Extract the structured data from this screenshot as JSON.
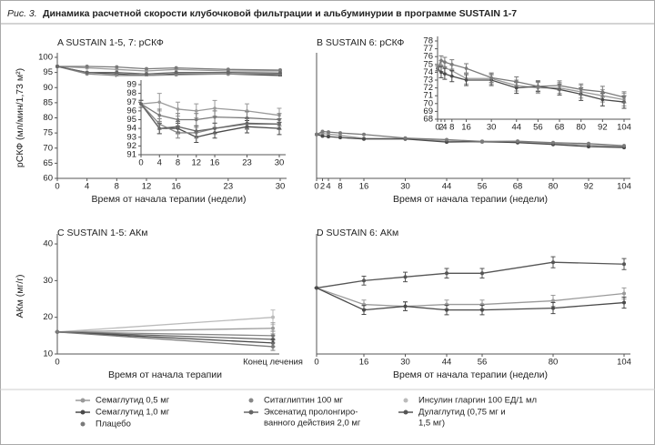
{
  "figure_label": "Рис. 3.",
  "figure_title": "Динамика расчетной скорости клубочковой фильтрации и альбуминурии в программе  SUSTAIN 1-7",
  "chart_data": [
    {
      "type": "line",
      "title": "A SUSTAIN 1-5, 7: рСКФ",
      "ylabel": "рСКФ (мл/мин/1,73 м²)",
      "xlabel": "Время от начала терапии (недели)",
      "x": [
        0,
        4,
        8,
        12,
        16,
        23,
        30
      ],
      "xlim": [
        0,
        30
      ],
      "xticks": [
        0,
        4,
        8,
        12,
        16,
        23,
        30
      ],
      "ylim": [
        60,
        100
      ],
      "yticks": [
        60,
        65,
        70,
        75,
        80,
        85,
        90,
        95,
        100
      ],
      "series": [
        {
          "color": "#9a9a9a",
          "values": [
            97,
            96.5,
            96,
            95.5,
            96,
            95.5,
            95.5
          ]
        },
        {
          "color": "#4a4a4a",
          "values": [
            97,
            95,
            94.5,
            94,
            94.5,
            94.5,
            94
          ]
        },
        {
          "color": "#7a7a7a",
          "values": [
            97,
            97,
            96.8,
            96.2,
            96.5,
            96,
            95.8
          ]
        },
        {
          "color": "#888888",
          "values": [
            97,
            94.5,
            94,
            94,
            94.2,
            94.5,
            94.5
          ]
        },
        {
          "color": "#666666",
          "values": [
            97,
            95,
            95,
            94.5,
            95,
            95,
            94.8
          ]
        }
      ]
    },
    {
      "type": "line",
      "x": [
        0,
        4,
        8,
        12,
        16,
        23,
        30
      ],
      "xlim": [
        0,
        30
      ],
      "xticks": [
        0,
        4,
        8,
        12,
        16,
        23,
        30
      ],
      "ylim": [
        91,
        99
      ],
      "yticks": [
        91,
        92,
        93,
        94,
        95,
        96,
        97,
        98,
        99
      ],
      "series": [
        {
          "color": "#9a9a9a",
          "values": [
            96.8,
            97,
            96.2,
            96,
            96.3,
            96,
            95.5
          ],
          "errors": [
            0.4,
            1,
            0.8,
            0.8,
            0.9,
            0.8,
            0.8
          ]
        },
        {
          "color": "#4a4a4a",
          "values": [
            96.8,
            94,
            94,
            93,
            93.5,
            94.2,
            94
          ],
          "errors": [
            0.4,
            0.6,
            0.6,
            0.6,
            0.6,
            0.7,
            0.7
          ]
        },
        {
          "color": "#7a7a7a",
          "values": [
            96.8,
            95.5,
            95,
            95,
            95.3,
            95.2,
            95
          ],
          "errors": [
            0.4,
            0.7,
            0.7,
            0.7,
            0.7,
            0.7,
            0.7
          ]
        },
        {
          "color": "#888888",
          "values": [
            96.8,
            94.5,
            93.5,
            93.5,
            94,
            94.5,
            94.5
          ],
          "errors": [
            0.4,
            0.6,
            0.6,
            0.6,
            0.6,
            0.6,
            0.6
          ]
        },
        {
          "color": "#666666",
          "values": [
            96.8,
            94,
            94.2,
            93.7,
            94,
            94.6,
            94.5
          ],
          "errors": [
            0.4,
            0.6,
            0.6,
            0.6,
            0.6,
            0.6,
            0.6
          ]
        }
      ]
    },
    {
      "type": "line",
      "title": "B SUSTAIN 6: рСКФ",
      "xlabel": "Время от начала терапии (недели)",
      "x": [
        0,
        2,
        4,
        8,
        16,
        30,
        44,
        56,
        68,
        80,
        92,
        104
      ],
      "xlim": [
        0,
        104
      ],
      "xticks": [
        0,
        2,
        4,
        8,
        16,
        30,
        44,
        56,
        68,
        80,
        92,
        104
      ],
      "ylim": [
        60,
        100
      ],
      "series": [
        {
          "color": "#9a9a9a",
          "values": [
            74.5,
            74.8,
            74.6,
            74.2,
            73.2,
            73.2,
            72.3,
            72,
            72,
            71.5,
            71,
            70.5
          ]
        },
        {
          "color": "#4a4a4a",
          "values": [
            74.5,
            74,
            73.8,
            73.5,
            73,
            73,
            72,
            72.2,
            71.8,
            71.2,
            70.5,
            70.2
          ]
        },
        {
          "color": "#7a7a7a",
          "values": [
            74.5,
            75.5,
            75.3,
            75,
            74.5,
            73.3,
            72.8,
            72.2,
            72.3,
            71.8,
            71.5,
            70.8
          ]
        }
      ]
    },
    {
      "type": "line",
      "x": [
        0,
        2,
        4,
        8,
        16,
        30,
        44,
        56,
        68,
        80,
        92,
        104
      ],
      "xlim": [
        0,
        104
      ],
      "xticks": [
        0,
        2,
        4,
        8,
        16,
        30,
        44,
        56,
        68,
        80,
        92,
        104
      ],
      "ylim": [
        68,
        78
      ],
      "yticks": [
        68,
        69,
        70,
        71,
        72,
        73,
        74,
        75,
        76,
        77,
        78
      ],
      "series": [
        {
          "color": "#9a9a9a",
          "values": [
            74.5,
            74.8,
            74.6,
            74.2,
            73.2,
            73.2,
            72.3,
            72,
            72,
            71.5,
            71,
            70.5
          ],
          "errors": [
            0.3,
            0.7,
            0.7,
            0.7,
            0.7,
            0.7,
            0.7,
            0.7,
            0.7,
            0.8,
            0.8,
            0.8
          ]
        },
        {
          "color": "#4a4a4a",
          "values": [
            74.5,
            74,
            73.8,
            73.5,
            73,
            73,
            72,
            72.2,
            71.8,
            71.2,
            70.5,
            70.2
          ],
          "errors": [
            0.3,
            0.7,
            0.7,
            0.7,
            0.7,
            0.7,
            0.7,
            0.7,
            0.7,
            0.8,
            0.8,
            0.8
          ]
        },
        {
          "color": "#7a7a7a",
          "values": [
            74.5,
            75.5,
            75.3,
            75,
            74.5,
            73.3,
            72.8,
            72.2,
            72.3,
            71.8,
            71.5,
            70.8
          ],
          "errors": [
            0.3,
            0.6,
            0.6,
            0.6,
            0.6,
            0.6,
            0.6,
            0.6,
            0.6,
            0.7,
            0.7,
            0.7
          ]
        }
      ]
    },
    {
      "type": "line",
      "title": "C SUSTAIN 1-5: АКм",
      "ylabel": "АКм (мг/г)",
      "xlabel": "Время от начала терапии",
      "categories": [
        "0",
        "Конец лечения"
      ],
      "ylim": [
        10,
        41.5
      ],
      "yticks": [
        10,
        20,
        30,
        40
      ],
      "series": [
        {
          "color": "#bbbbbb",
          "values": [
            16,
            20
          ],
          "errors": [
            0,
            2
          ]
        },
        {
          "color": "#9a9a9a",
          "values": [
            16,
            17
          ],
          "errors": [
            0,
            1.5
          ]
        },
        {
          "color": "#888888",
          "values": [
            16,
            15
          ],
          "errors": [
            0,
            1.2
          ]
        },
        {
          "color": "#666666",
          "values": [
            16,
            14
          ],
          "errors": [
            0,
            1
          ]
        },
        {
          "color": "#4a4a4a",
          "values": [
            16,
            13
          ],
          "errors": [
            0,
            1
          ]
        },
        {
          "color": "#7a7a7a",
          "values": [
            16,
            12
          ],
          "errors": [
            0,
            1
          ]
        }
      ]
    },
    {
      "type": "line",
      "title": "D SUSTAIN 6: АКм",
      "xlabel": "Время от начала терапии (недели)",
      "x": [
        0,
        16,
        30,
        44,
        56,
        80,
        104
      ],
      "xlim": [
        0,
        104
      ],
      "xticks": [
        0,
        16,
        30,
        44,
        56,
        80,
        104
      ],
      "ylim": [
        10,
        41.5
      ],
      "series": [
        {
          "color": "#555555",
          "values": [
            28,
            30,
            31,
            32,
            32,
            35,
            34.5
          ],
          "errors": [
            0,
            1.2,
            1.3,
            1.3,
            1.3,
            1.5,
            1.5
          ]
        },
        {
          "color": "#9a9a9a",
          "values": [
            28,
            23.5,
            23,
            23.5,
            23.5,
            24.5,
            26.5
          ],
          "errors": [
            0,
            1.2,
            1.2,
            1.2,
            1.2,
            1.5,
            1.5
          ]
        },
        {
          "color": "#4a4a4a",
          "values": [
            28,
            22,
            23,
            22,
            22,
            22.5,
            24
          ],
          "errors": [
            0,
            1.2,
            1.2,
            1.3,
            1.3,
            1.5,
            1.5
          ]
        }
      ]
    }
  ],
  "legend": [
    {
      "lines": [
        "Семаглутид 0,5 мг"
      ],
      "color": "#9a9a9a",
      "style": "line"
    },
    {
      "lines": [
        "Семаглутид 1,0 мг"
      ],
      "color": "#4a4a4a",
      "style": "line"
    },
    {
      "lines": [
        "Плацебо"
      ],
      "color": "#7a7a7a",
      "style": "marker"
    },
    {
      "lines": [
        "Ситаглиптин 100 мг"
      ],
      "color": "#888888",
      "style": "marker"
    },
    {
      "lines": [
        "Эксенатид пролонгиро-",
        "ванного действия 2,0 мг"
      ],
      "color": "#666666",
      "style": "line"
    },
    {
      "lines": [
        "Инсулин гларгин 100 ЕД/1 мл"
      ],
      "color": "#bbbbbb",
      "style": "marker"
    },
    {
      "lines": [
        "Дулаглутид (0,75 мг и",
        "1,5 мг)"
      ],
      "color": "#555555",
      "style": "line"
    }
  ]
}
